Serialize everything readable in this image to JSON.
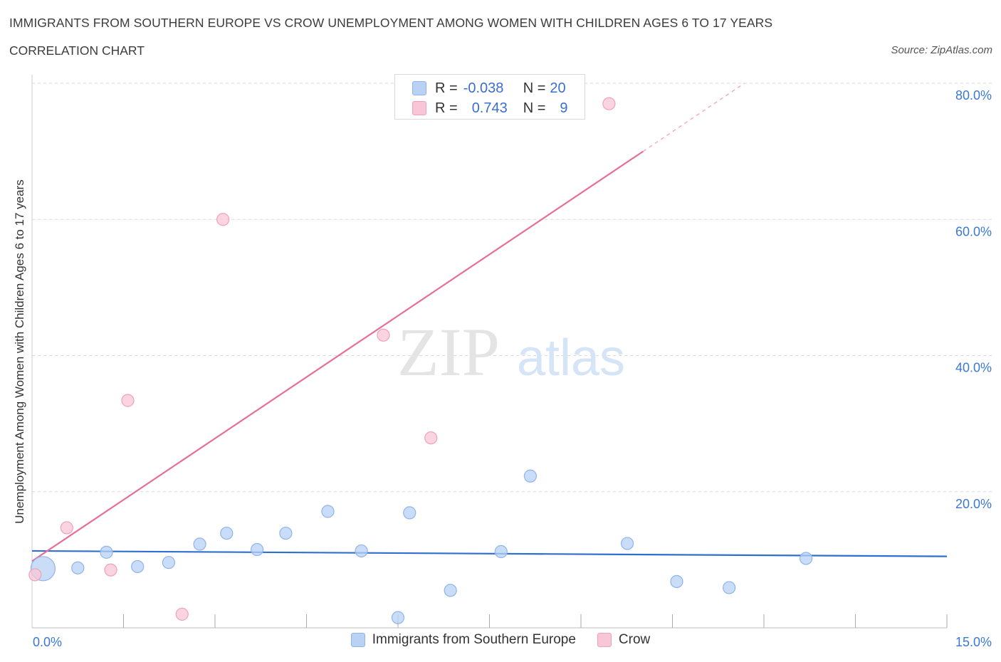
{
  "title": "IMMIGRANTS FROM SOUTHERN EUROPE VS CROW UNEMPLOYMENT AMONG WOMEN WITH CHILDREN AGES 6 TO 17 YEARS",
  "subtitle": "CORRELATION CHART",
  "source": "Source: ZipAtlas.com",
  "watermark": {
    "zip": "ZIP",
    "atlas": "atlas"
  },
  "colors": {
    "blue_fill": "#b8d1f5",
    "blue_stroke": "#8fb3ec",
    "blue_line": "#2f6fd0",
    "pink_fill": "#f8c6d6",
    "pink_stroke": "#f0a0ba",
    "pink_line": "#e86d99",
    "axis_text": "#3a78d8",
    "grid": "#d9d9d9"
  },
  "legend_box": {
    "rows": [
      {
        "r_label": "R =",
        "r_value": "-0.038",
        "n_label": "N =",
        "n_value": "20"
      },
      {
        "r_label": "R =",
        "r_value": "0.743",
        "n_label": "N =",
        "n_value": "9"
      }
    ]
  },
  "legend_bottom": {
    "items": [
      {
        "label": "Immigrants from Southern Europe"
      },
      {
        "label": "Crow"
      }
    ]
  },
  "chart_data": {
    "type": "scatter",
    "title": "IMMIGRANTS FROM SOUTHERN EUROPE VS CROW UNEMPLOYMENT AMONG WOMEN WITH CHILDREN AGES 6 TO 17 YEARS",
    "xlabel": "",
    "ylabel": "Unemployment Among Women with Children Ages 6 to 17 years",
    "xlim": [
      0,
      15
    ],
    "ylim": [
      0,
      80
    ],
    "x_tick_labels": [
      "0.0%",
      "15.0%"
    ],
    "y_ticks": [
      20,
      40,
      60,
      80
    ],
    "y_tick_labels": [
      "20.0%",
      "40.0%",
      "60.0%",
      "80.0%"
    ],
    "grid": true,
    "series": [
      {
        "name": "Immigrants from Southern Europe",
        "r": -0.038,
        "n": 20,
        "points": [
          {
            "x": 0.18,
            "y": 8.7,
            "size": "large"
          },
          {
            "x": 0.75,
            "y": 8.8
          },
          {
            "x": 1.22,
            "y": 11.1
          },
          {
            "x": 1.73,
            "y": 9.0
          },
          {
            "x": 2.24,
            "y": 9.6
          },
          {
            "x": 2.75,
            "y": 12.3
          },
          {
            "x": 3.19,
            "y": 13.9
          },
          {
            "x": 3.69,
            "y": 11.5
          },
          {
            "x": 4.16,
            "y": 13.9
          },
          {
            "x": 4.85,
            "y": 17.1
          },
          {
            "x": 5.4,
            "y": 11.3
          },
          {
            "x": 6.0,
            "y": 1.5
          },
          {
            "x": 6.19,
            "y": 16.9
          },
          {
            "x": 6.86,
            "y": 5.5
          },
          {
            "x": 7.69,
            "y": 11.2
          },
          {
            "x": 8.17,
            "y": 22.3
          },
          {
            "x": 9.76,
            "y": 12.4
          },
          {
            "x": 10.57,
            "y": 6.8
          },
          {
            "x": 11.43,
            "y": 5.9
          },
          {
            "x": 12.69,
            "y": 10.2
          }
        ],
        "trend": {
          "x": [
            0.0,
            15.0
          ],
          "y": [
            11.3,
            10.5
          ]
        }
      },
      {
        "name": "Crow",
        "r": 0.743,
        "n": 9,
        "points": [
          {
            "x": 0.05,
            "y": 7.8
          },
          {
            "x": 0.57,
            "y": 14.7
          },
          {
            "x": 1.29,
            "y": 8.5
          },
          {
            "x": 1.57,
            "y": 33.4
          },
          {
            "x": 2.46,
            "y": 2.0
          },
          {
            "x": 3.13,
            "y": 60.0
          },
          {
            "x": 5.76,
            "y": 43.0
          },
          {
            "x": 6.54,
            "y": 27.9
          },
          {
            "x": 9.46,
            "y": 77.0
          }
        ],
        "trend": {
          "x": [
            0.0,
            10.02
          ],
          "y": [
            9.8,
            70.0
          ]
        },
        "trend_dashed": {
          "x": [
            10.02,
            11.68
          ],
          "y": [
            70.0,
            80.0
          ]
        }
      }
    ]
  }
}
